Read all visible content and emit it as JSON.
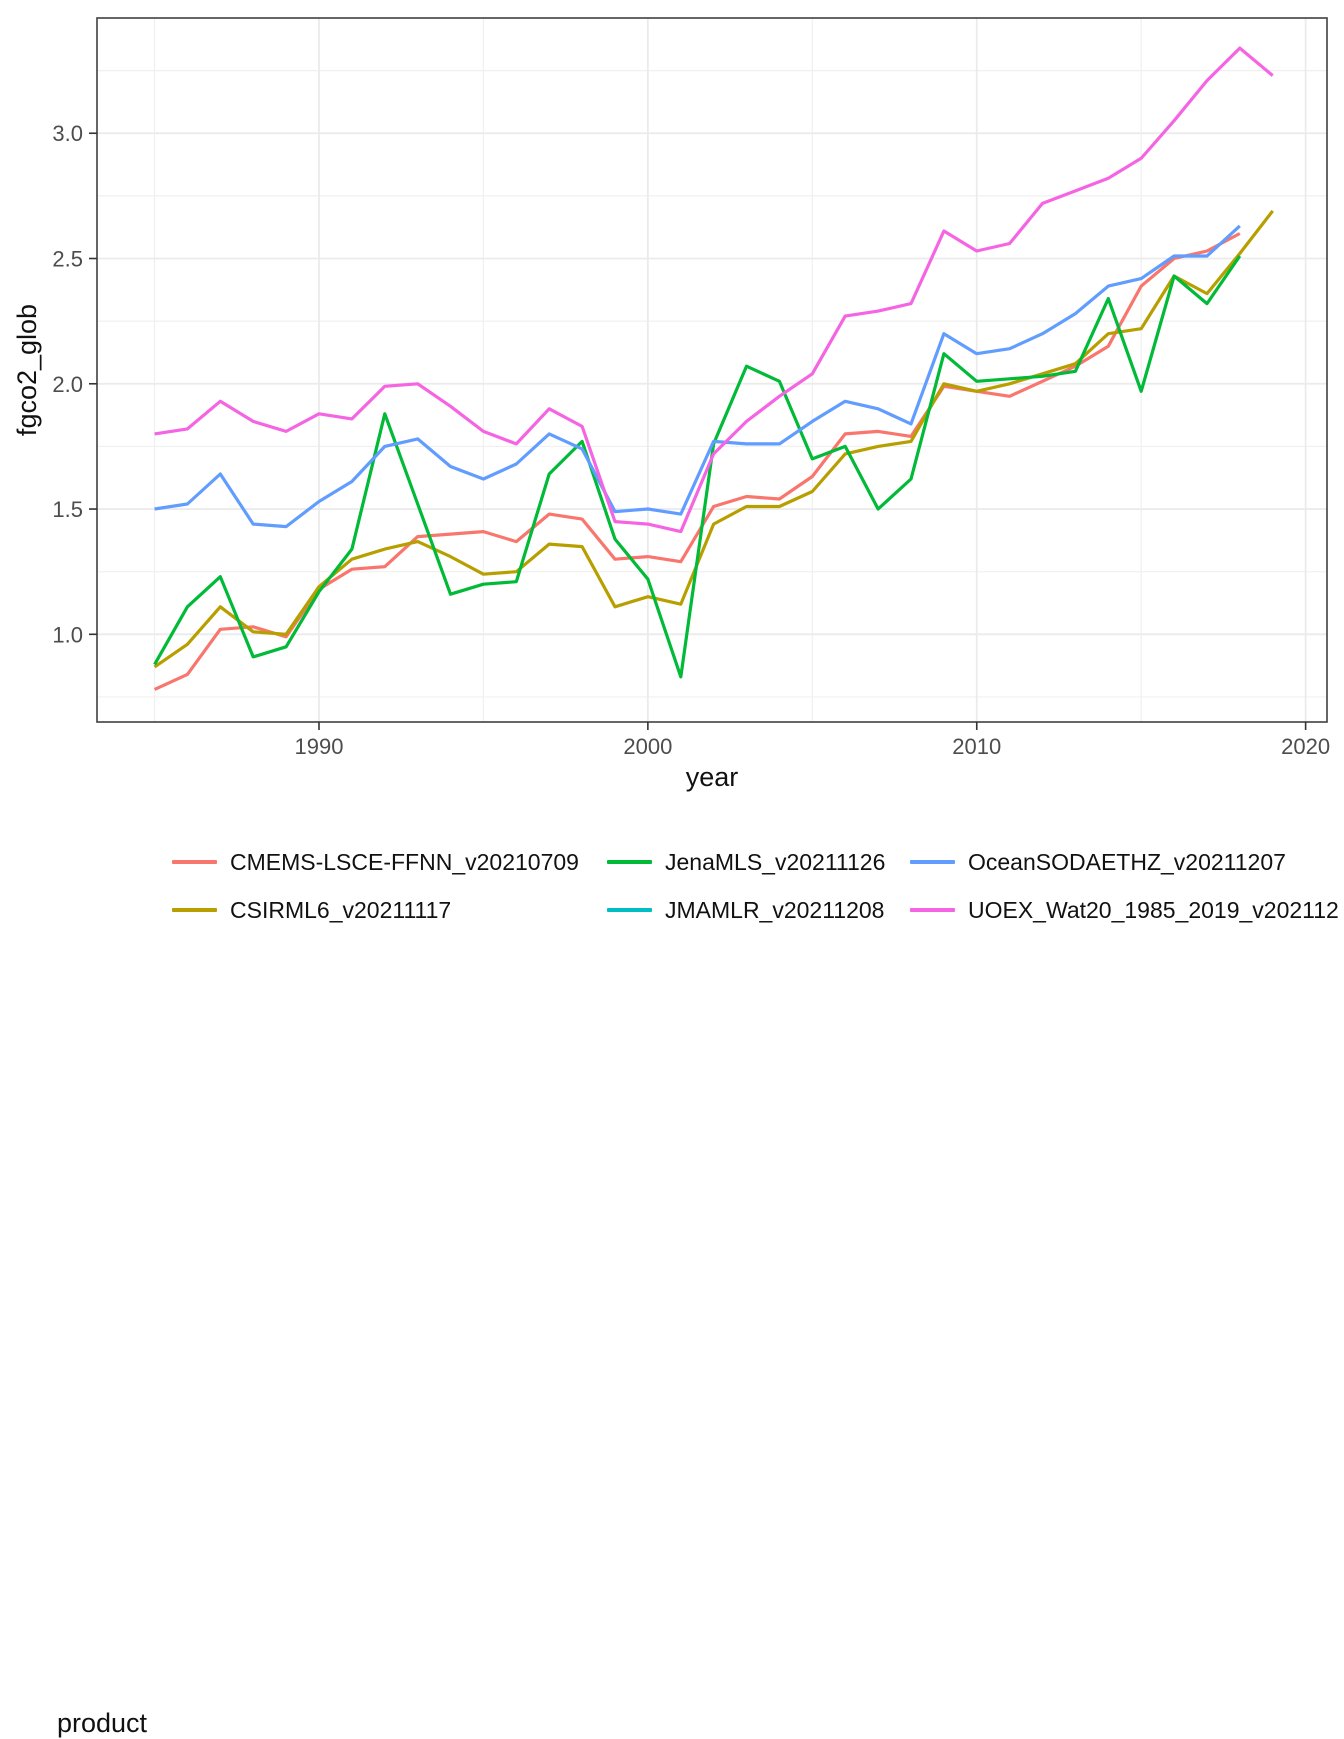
{
  "figure": {
    "background": "#FFFFFF",
    "panel_border_color": "#404040",
    "grid_major_color": "#EBEBEB",
    "grid_minor_color": "#F0F0F0",
    "tick_color": "#333333",
    "tick_label_color": "#4D4D4D"
  },
  "chart_data": {
    "type": "line",
    "title": "",
    "xlabel": "year",
    "ylabel": "fgco2_glob",
    "grid": true,
    "xlim": [
      1983.25,
      2020.65
    ],
    "ylim": [
      0.65,
      3.46
    ],
    "x_ticks": [
      1990,
      2000,
      2010,
      2020
    ],
    "x_tick_labels": [
      "1990",
      "2000",
      "2010",
      "2020"
    ],
    "x_minor_breaks": [
      1985,
      1995,
      2005,
      2015
    ],
    "y_ticks": [
      1.0,
      1.5,
      2.0,
      2.5,
      3.0
    ],
    "y_tick_labels": [
      "1.0",
      "1.5",
      "2.0",
      "2.5",
      "3.0"
    ],
    "y_minor_breaks": [
      0.75,
      1.25,
      1.75,
      2.25,
      2.75,
      3.25
    ],
    "legend_title": "product",
    "legend_position": "bottom",
    "x": [
      1985,
      1986,
      1987,
      1988,
      1989,
      1990,
      1991,
      1992,
      1993,
      1994,
      1995,
      1996,
      1997,
      1998,
      1999,
      2000,
      2001,
      2002,
      2003,
      2004,
      2005,
      2006,
      2007,
      2008,
      2009,
      2010,
      2011,
      2012,
      2013,
      2014,
      2015,
      2016,
      2017,
      2018,
      2019
    ],
    "series": [
      {
        "name": "CMEMS-LSCE-FFNN_v20210709",
        "color": "#F8766D",
        "values": [
          0.78,
          0.84,
          1.02,
          1.03,
          0.99,
          1.18,
          1.26,
          1.27,
          1.39,
          1.4,
          1.41,
          1.37,
          1.48,
          1.46,
          1.3,
          1.31,
          1.29,
          1.51,
          1.55,
          1.54,
          1.63,
          1.8,
          1.81,
          1.79,
          1.99,
          1.97,
          1.95,
          2.01,
          2.07,
          2.15,
          2.39,
          2.5,
          2.53,
          2.6,
          null
        ]
      },
      {
        "name": "CSIRML6_v20211117",
        "color": "#B79F00",
        "values": [
          0.87,
          0.96,
          1.11,
          1.01,
          1.0,
          1.19,
          1.3,
          1.34,
          1.37,
          1.31,
          1.24,
          1.25,
          1.36,
          1.35,
          1.11,
          1.15,
          1.12,
          1.44,
          1.51,
          1.51,
          1.57,
          1.72,
          1.75,
          1.77,
          2.0,
          1.97,
          2.0,
          2.04,
          2.08,
          2.2,
          2.22,
          2.43,
          2.36,
          2.52,
          2.69
        ]
      },
      {
        "name": "JenaMLS_v20211126",
        "color": "#00BA38",
        "values": [
          0.88,
          1.11,
          1.23,
          0.91,
          0.95,
          1.17,
          1.34,
          1.88,
          1.52,
          1.16,
          1.2,
          1.21,
          1.64,
          1.77,
          1.38,
          1.22,
          0.83,
          1.76,
          2.07,
          2.01,
          1.7,
          1.75,
          1.5,
          1.62,
          2.12,
          2.01,
          2.02,
          2.03,
          2.05,
          2.34,
          1.97,
          2.43,
          2.32,
          2.51,
          null
        ]
      },
      {
        "name": "JMAMLR_v20211208",
        "color": "#00BFC4",
        "values": [
          null,
          null,
          null,
          null,
          null,
          null,
          null,
          null,
          null,
          null,
          null,
          null,
          null,
          null,
          null,
          null,
          null,
          null,
          null,
          null,
          null,
          null,
          null,
          null,
          null,
          null,
          null,
          null,
          null,
          null,
          null,
          null,
          null,
          null,
          null
        ],
        "note": "legend entry only; no line visible in plot"
      },
      {
        "name": "OceanSODAETHZ_v20211207",
        "color": "#619CFF",
        "values": [
          1.5,
          1.52,
          1.64,
          1.44,
          1.43,
          1.53,
          1.61,
          1.75,
          1.78,
          1.67,
          1.62,
          1.68,
          1.8,
          1.74,
          1.49,
          1.5,
          1.48,
          1.77,
          1.76,
          1.76,
          1.85,
          1.93,
          1.9,
          1.84,
          2.2,
          2.12,
          2.14,
          2.2,
          2.28,
          2.39,
          2.42,
          2.51,
          2.51,
          2.63,
          null
        ]
      },
      {
        "name": "UOEX_Wat20_1985_2019_v202112",
        "color": "#F564E3",
        "values": [
          1.8,
          1.82,
          1.93,
          1.85,
          1.81,
          1.88,
          1.86,
          1.99,
          2.0,
          1.91,
          1.81,
          1.76,
          1.9,
          1.83,
          1.45,
          1.44,
          1.41,
          1.72,
          1.85,
          1.95,
          2.04,
          2.27,
          2.29,
          2.32,
          2.61,
          2.53,
          2.56,
          2.72,
          2.77,
          2.82,
          2.9,
          3.05,
          3.21,
          3.34,
          3.23
        ]
      }
    ]
  }
}
